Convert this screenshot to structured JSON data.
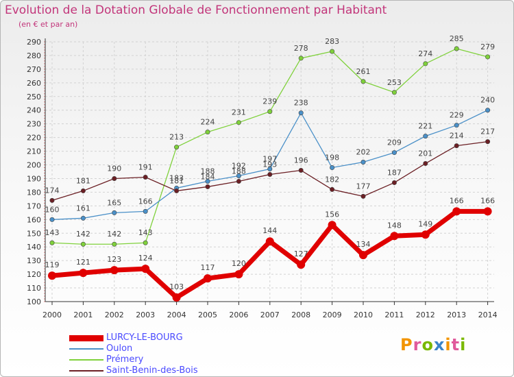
{
  "title": "Evolution de la Dotation Globale de Fonctionnement par Habitant",
  "subtitle": "(en € et par an)",
  "logo": [
    "P",
    "r",
    "o",
    "x",
    "i",
    "t",
    "i"
  ],
  "logo_colors": [
    "#f29400",
    "#e05a9c",
    "#7ab800",
    "#3a83c9",
    "#f29400",
    "#e05a9c",
    "#7ab800"
  ],
  "chart_data": {
    "type": "line",
    "title": "Evolution de la Dotation Globale de Fonctionnement par Habitant",
    "ylabel": "(en € et par an)",
    "xlabel": "",
    "x": [
      2000,
      2001,
      2002,
      2003,
      2004,
      2005,
      2006,
      2007,
      2008,
      2009,
      2010,
      2011,
      2012,
      2013,
      2014
    ],
    "ylim": [
      100,
      290
    ],
    "yticks": [
      100,
      110,
      120,
      130,
      140,
      150,
      160,
      170,
      180,
      190,
      200,
      210,
      220,
      230,
      240,
      250,
      260,
      270,
      280,
      290
    ],
    "grid": true,
    "series": [
      {
        "name": "Prémery",
        "color": "#7fd13b",
        "values": [
          143,
          142,
          142,
          143,
          213,
          224,
          231,
          239,
          278,
          283,
          261,
          253,
          274,
          285,
          279
        ]
      },
      {
        "name": "Oulon",
        "color": "#4a90c8",
        "values": [
          160,
          161,
          165,
          166,
          183,
          188,
          192,
          197,
          238,
          198,
          202,
          209,
          221,
          229,
          240
        ]
      },
      {
        "name": "Saint-Benin-des-Bois",
        "color": "#6b1f24",
        "values": [
          174,
          181,
          190,
          191,
          181,
          184,
          188,
          193,
          196,
          182,
          177,
          187,
          201,
          214,
          217
        ]
      },
      {
        "name": "LURCY-LE-BOURG",
        "color": "#e00000",
        "values": [
          119,
          121,
          123,
          124,
          103,
          117,
          120,
          144,
          127,
          156,
          134,
          148,
          149,
          166,
          166
        ]
      }
    ],
    "legend_order": [
      "LURCY-LE-BOURG",
      "Oulon",
      "Prémery",
      "Saint-Benin-des-Bois"
    ],
    "legend_position": "bottom-left"
  }
}
